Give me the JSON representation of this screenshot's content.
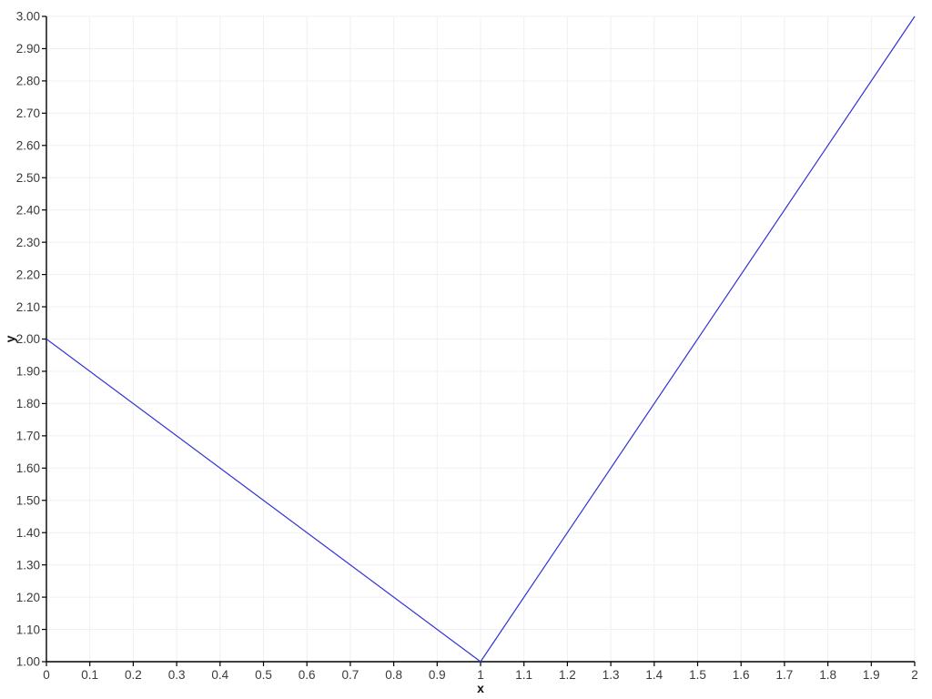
{
  "page": {
    "background": "#ffffff"
  },
  "chart_data": {
    "type": "line",
    "title": "",
    "xlabel": "x",
    "ylabel": "y",
    "xlim": [
      0,
      2
    ],
    "ylim": [
      1,
      3
    ],
    "x_tick_step": 0.1,
    "y_tick_step": 0.1,
    "x_tick_labels": [
      "0",
      "0.1",
      "0.2",
      "0.3",
      "0.4",
      "0.5",
      "0.6",
      "0.7",
      "0.8",
      "0.9",
      "1",
      "1.1",
      "1.2",
      "1.3",
      "1.4",
      "1.5",
      "1.6",
      "1.7",
      "1.8",
      "1.9",
      "2"
    ],
    "y_tick_labels": [
      "1.00",
      "1.10",
      "1.20",
      "1.30",
      "1.40",
      "1.50",
      "1.60",
      "1.70",
      "1.80",
      "1.90",
      "2.00",
      "2.10",
      "2.20",
      "2.30",
      "2.40",
      "2.50",
      "2.60",
      "2.70",
      "2.80",
      "2.90",
      "3.00"
    ],
    "grid": true,
    "legend": "none",
    "grid_color": "#f0f0f2",
    "axis_color": "#000000",
    "tick_color": "#000000",
    "tick_label_color": "#3a3a3a",
    "series": [
      {
        "color": "#3232d9",
        "x": [
          0,
          1,
          2
        ],
        "y": [
          2,
          1,
          3
        ]
      }
    ]
  }
}
